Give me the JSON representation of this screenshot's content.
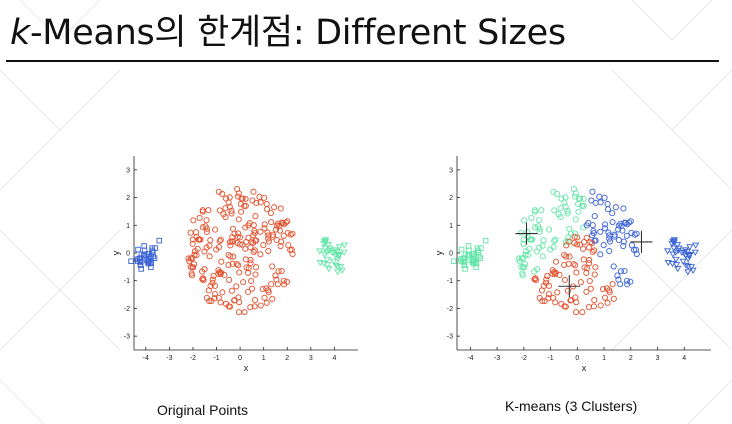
{
  "header": {
    "title_italic": "k",
    "title_rest": "-Means의 한계점: Different Sizes"
  },
  "captions": {
    "left": "Original Points",
    "right": "K-means (3 Clusters)"
  },
  "chart_data": [
    {
      "type": "scatter",
      "title": "",
      "xlabel": "x",
      "ylabel": "y",
      "xlim": [
        -4.5,
        5
      ],
      "ylim": [
        -3.5,
        3.5
      ],
      "xticks": [
        -4,
        -3,
        -2,
        -1,
        0,
        1,
        2,
        3,
        4
      ],
      "yticks": [
        -3,
        -2,
        -1,
        0,
        1,
        2,
        3
      ],
      "colors": {
        "blue": "#3a62d6",
        "red": "#e4502c",
        "green": "#63e6a8"
      },
      "description": "Original points: small square cluster near (-4,0), large circle cluster centered at (0,0) radius ~2.3, small triangle cluster near (4,0)",
      "series": [
        {
          "marker": "square",
          "color": "blue",
          "center": [
            -4.0,
            -0.1
          ],
          "spread": [
            0.45,
            0.5
          ],
          "count": 35,
          "seed": 11
        },
        {
          "marker": "circle",
          "color": "red",
          "center": [
            0.0,
            0.1
          ],
          "radius": 2.3,
          "count": 220,
          "seed": 23
        },
        {
          "marker": "triangle",
          "color": "green",
          "center": [
            3.9,
            -0.1
          ],
          "spread": [
            0.45,
            0.55
          ],
          "count": 35,
          "seed": 37
        }
      ]
    },
    {
      "type": "scatter",
      "title": "",
      "xlabel": "x",
      "ylabel": "y",
      "xlim": [
        -4.5,
        5
      ],
      "ylim": [
        -3.5,
        3.5
      ],
      "xticks": [
        -4,
        -3,
        -2,
        -1,
        0,
        1,
        2,
        3,
        4
      ],
      "yticks": [
        -3,
        -2,
        -1,
        0,
        1,
        2,
        3
      ],
      "colors": {
        "blue": "#3a62d6",
        "red": "#e4502c",
        "green": "#63e6a8",
        "centroid": "#333333"
      },
      "description": "K-means with 3 clusters splits the large cluster; centroids marked with crosses",
      "centroids": [
        [
          -1.9,
          0.7
        ],
        [
          -0.3,
          -1.2
        ],
        [
          2.4,
          0.4
        ]
      ],
      "assignment": "nearest-centroid recoloring of the same points",
      "cluster_colors": [
        "green",
        "red",
        "blue"
      ]
    }
  ]
}
